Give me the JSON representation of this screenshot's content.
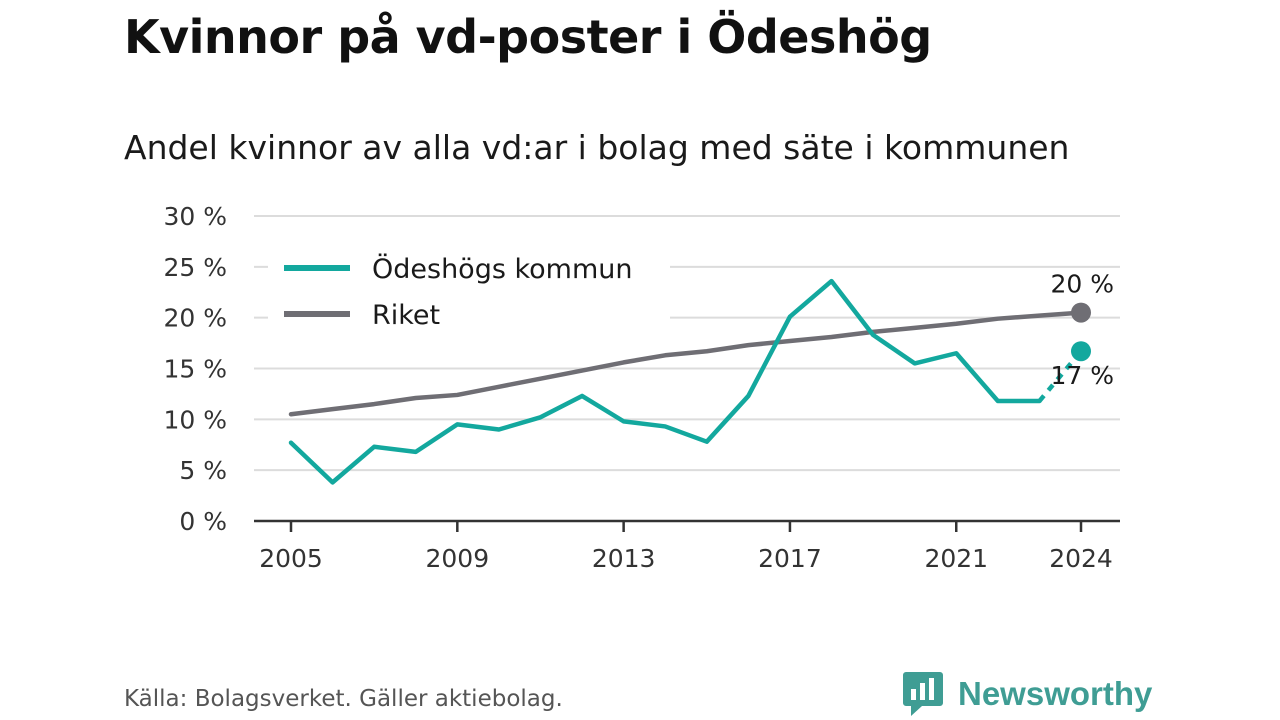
{
  "title": "Kvinnor på vd-poster i Ödeshög",
  "subtitle": "Andel kvinnor av alla vd:ar i bolag med säte i kommunen",
  "source": "Källa: Bolagsverket. Gäller aktiebolag.",
  "brand": {
    "name": "Newsworthy",
    "icon": "newsworthy-logo-icon",
    "color": "#3f9d94"
  },
  "chart_data": {
    "type": "line",
    "x": [
      2005,
      2006,
      2007,
      2008,
      2009,
      2010,
      2011,
      2012,
      2013,
      2014,
      2015,
      2016,
      2017,
      2018,
      2019,
      2020,
      2021,
      2022,
      2023,
      2024
    ],
    "series": [
      {
        "name": "Ödeshögs kommun",
        "color": "#13a89e",
        "values": [
          7.7,
          3.8,
          7.3,
          6.8,
          9.5,
          9.0,
          10.2,
          12.3,
          9.8,
          9.3,
          7.8,
          12.3,
          20.1,
          23.6,
          18.3,
          15.5,
          16.5,
          11.8,
          11.8,
          16.7
        ],
        "end_label": "17 %"
      },
      {
        "name": "Riket",
        "color": "#6f6e74",
        "values": [
          10.5,
          11.0,
          11.5,
          12.1,
          12.4,
          13.2,
          14.0,
          14.8,
          15.6,
          16.3,
          16.7,
          17.3,
          17.7,
          18.1,
          18.6,
          19.0,
          19.4,
          19.9,
          20.2,
          20.5
        ],
        "end_label": "20 %"
      }
    ],
    "x_ticks": [
      2005,
      2009,
      2013,
      2017,
      2021,
      2024
    ],
    "y_ticks": [
      0,
      5,
      10,
      15,
      20,
      25,
      30
    ],
    "y_tick_labels": [
      "0 %",
      "5 %",
      "10 %",
      "15 %",
      "20 %",
      "25 %",
      "30 %"
    ],
    "ylim": [
      0,
      30
    ],
    "xlim": [
      2005,
      2024
    ],
    "grid": "horizontal",
    "legend_position": "top-left"
  }
}
